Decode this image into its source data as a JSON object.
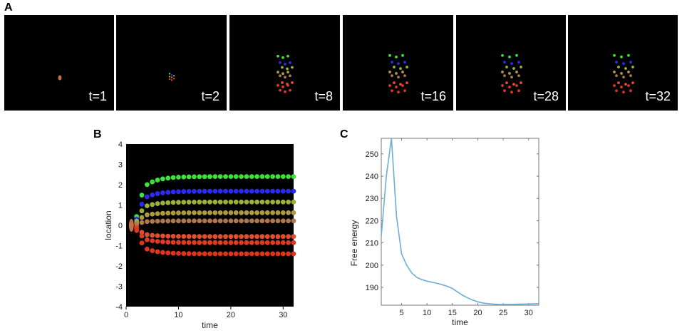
{
  "panels": {
    "a": {
      "letter": "A",
      "frames": [
        {
          "label": "t=1",
          "t": 1
        },
        {
          "label": "t=2",
          "t": 2
        },
        {
          "label": "t=8",
          "t": 8
        },
        {
          "label": "t=16",
          "t": 16
        },
        {
          "label": "t=28",
          "t": 28
        },
        {
          "label": "t=32",
          "t": 32
        }
      ]
    },
    "b": {
      "letter": "B"
    },
    "c": {
      "letter": "C"
    }
  },
  "chart_data": [
    {
      "id": "B",
      "type": "scatter",
      "xlabel": "time",
      "ylabel": "location",
      "xlim": [
        0,
        32
      ],
      "ylim": [
        -4,
        4
      ],
      "xticks": [
        0,
        10,
        20,
        30
      ],
      "yticks": [
        -4,
        -3,
        -2,
        -1,
        0,
        1,
        2,
        3,
        4
      ],
      "background": "#000000",
      "start_point": {
        "x": 1,
        "y": 0
      },
      "split_time": 2,
      "series": [
        {
          "name": "green",
          "color": "#3ee23a",
          "final": 2.4
        },
        {
          "name": "blue",
          "color": "#2c2cf0",
          "final": 1.68
        },
        {
          "name": "olive",
          "color": "#9cb03c",
          "final": 1.15
        },
        {
          "name": "khaki",
          "color": "#b09a40",
          "final": 0.62
        },
        {
          "name": "tan",
          "color": "#b07850",
          "final": 0.22
        },
        {
          "name": "red-1",
          "color": "#e05030",
          "final": -0.55
        },
        {
          "name": "red-2",
          "color": "#e03a22",
          "final": -0.85
        },
        {
          "name": "red-3",
          "color": "#e03420",
          "final": -1.4
        }
      ]
    },
    {
      "id": "C",
      "type": "line",
      "xlabel": "time",
      "ylabel": "Free energy",
      "xlim": [
        1,
        32
      ],
      "ylim": [
        182,
        257
      ],
      "xticks": [
        5,
        10,
        15,
        20,
        25,
        30
      ],
      "yticks": [
        190,
        200,
        210,
        220,
        230,
        240,
        250
      ],
      "color": "#6baed6",
      "grid": false,
      "x": [
        1,
        2,
        3,
        4,
        5,
        6,
        7,
        8,
        9,
        10,
        11,
        12,
        13,
        14,
        15,
        16,
        17,
        18,
        19,
        20,
        21,
        22,
        23,
        24,
        25,
        26,
        27,
        28,
        29,
        30,
        31,
        32
      ],
      "y": [
        213,
        240,
        257,
        222,
        205,
        200,
        196.5,
        194.5,
        193.5,
        192.8,
        192.3,
        191.8,
        191.2,
        190.5,
        189.5,
        188,
        186.5,
        185.3,
        184.3,
        183.5,
        183,
        182.7,
        182.5,
        182.4,
        182.35,
        182.35,
        182.4,
        182.45,
        182.5,
        182.55,
        182.6,
        182.7
      ]
    }
  ]
}
